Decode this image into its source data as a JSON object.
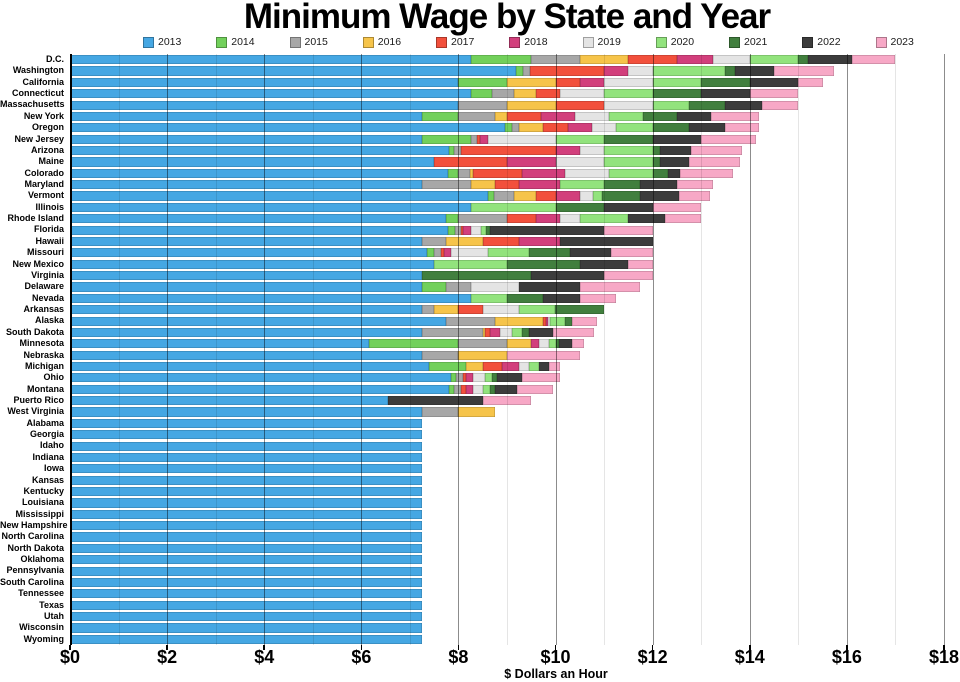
{
  "title": "Minimum Wage by State and Year",
  "chart_data": {
    "type": "bar",
    "orientation": "horizontal",
    "stacked": true,
    "title": "Minimum Wage by State and Year",
    "xlabel": "$ Dollars an Hour",
    "xlim": [
      0,
      18
    ],
    "x_ticks": [
      "$0",
      "$2",
      "$4",
      "$6",
      "$8",
      "$10",
      "$12",
      "$14",
      "$16",
      "$18"
    ],
    "x_tick_values": [
      0,
      2,
      4,
      6,
      8,
      10,
      12,
      14,
      16,
      18
    ],
    "grid": "vertical lines every $1, darker lines at labeled $2 steps",
    "legend_position": "top",
    "segment_meaning": "first segment = 2013 wage; each later segment = increase reached in that year; total bar length = 2023 wage",
    "years": [
      "2013",
      "2014",
      "2015",
      "2016",
      "2017",
      "2018",
      "2019",
      "2020",
      "2021",
      "2022",
      "2023"
    ],
    "year_colors": [
      "#45a7e3",
      "#72d05b",
      "#a7a7a7",
      "#f6c44a",
      "#f2503c",
      "#d23f7c",
      "#e4e4e4",
      "#92e37d",
      "#417f3e",
      "#3c3c3c",
      "#f7a8c6"
    ],
    "series_by_state": [
      {
        "state": "D.C.",
        "wage_by_year": [
          8.25,
          9.5,
          10.5,
          11.5,
          12.5,
          13.25,
          14.0,
          15.0,
          15.2,
          16.1,
          17.0
        ]
      },
      {
        "state": "Washington",
        "wage_by_year": [
          9.19,
          9.32,
          9.47,
          9.47,
          11.0,
          11.5,
          12.0,
          13.5,
          13.69,
          14.49,
          15.74
        ]
      },
      {
        "state": "California",
        "wage_by_year": [
          8.0,
          9.0,
          9.0,
          10.0,
          10.5,
          11.0,
          12.0,
          13.0,
          14.0,
          15.0,
          15.5
        ]
      },
      {
        "state": "Connecticut",
        "wage_by_year": [
          8.25,
          8.7,
          9.15,
          9.6,
          10.1,
          10.1,
          11.0,
          12.0,
          13.0,
          14.0,
          15.0
        ]
      },
      {
        "state": "Massachusetts",
        "wage_by_year": [
          8.0,
          8.0,
          9.0,
          10.0,
          11.0,
          11.0,
          12.0,
          12.75,
          13.5,
          14.25,
          15.0
        ]
      },
      {
        "state": "New York",
        "wage_by_year": [
          7.25,
          8.0,
          8.75,
          9.0,
          9.7,
          10.4,
          11.1,
          11.8,
          12.5,
          13.2,
          14.2
        ]
      },
      {
        "state": "Oregon",
        "wage_by_year": [
          8.95,
          9.1,
          9.25,
          9.75,
          10.25,
          10.75,
          11.25,
          12.0,
          12.75,
          13.5,
          14.2
        ]
      },
      {
        "state": "New Jersey",
        "wage_by_year": [
          7.25,
          8.25,
          8.38,
          8.38,
          8.44,
          8.6,
          10.0,
          11.0,
          12.0,
          13.0,
          14.13
        ]
      },
      {
        "state": "Arizona",
        "wage_by_year": [
          7.8,
          7.9,
          8.05,
          8.05,
          10.0,
          10.5,
          11.0,
          12.0,
          12.15,
          12.8,
          13.85
        ]
      },
      {
        "state": "Maine",
        "wage_by_year": [
          7.5,
          7.5,
          7.5,
          7.5,
          9.0,
          10.0,
          11.0,
          12.0,
          12.15,
          12.75,
          13.8
        ]
      },
      {
        "state": "Colorado",
        "wage_by_year": [
          7.78,
          8.0,
          8.23,
          8.31,
          9.3,
          10.2,
          11.1,
          12.0,
          12.32,
          12.56,
          13.65
        ]
      },
      {
        "state": "Maryland",
        "wage_by_year": [
          7.25,
          7.25,
          8.25,
          8.75,
          9.25,
          10.1,
          10.1,
          11.0,
          11.75,
          12.5,
          13.25
        ]
      },
      {
        "state": "Vermont",
        "wage_by_year": [
          8.6,
          8.73,
          9.15,
          9.6,
          10.0,
          10.5,
          10.78,
          10.96,
          11.75,
          12.55,
          13.18
        ]
      },
      {
        "state": "Illinois",
        "wage_by_year": [
          8.25,
          8.25,
          8.25,
          8.25,
          8.25,
          8.25,
          8.25,
          10.0,
          11.0,
          12.0,
          13.0
        ]
      },
      {
        "state": "Rhode Island",
        "wage_by_year": [
          7.75,
          8.0,
          9.0,
          9.0,
          9.6,
          10.1,
          10.5,
          11.5,
          11.5,
          12.25,
          13.0
        ]
      },
      {
        "state": "Florida",
        "wage_by_year": [
          7.79,
          7.93,
          8.05,
          8.05,
          8.1,
          8.25,
          8.46,
          8.56,
          8.65,
          11.0,
          12.0
        ]
      },
      {
        "state": "Hawaii",
        "wage_by_year": [
          7.25,
          7.25,
          7.75,
          8.5,
          9.25,
          10.1,
          10.1,
          10.1,
          10.1,
          12.0,
          12.0
        ]
      },
      {
        "state": "Missouri",
        "wage_by_year": [
          7.35,
          7.5,
          7.65,
          7.65,
          7.7,
          7.85,
          8.6,
          9.45,
          10.3,
          11.15,
          12.0
        ]
      },
      {
        "state": "New Mexico",
        "wage_by_year": [
          7.5,
          7.5,
          7.5,
          7.5,
          7.5,
          7.5,
          7.5,
          9.0,
          10.5,
          11.5,
          12.0
        ]
      },
      {
        "state": "Virginia",
        "wage_by_year": [
          7.25,
          7.25,
          7.25,
          7.25,
          7.25,
          7.25,
          7.25,
          7.25,
          9.5,
          11.0,
          12.0
        ]
      },
      {
        "state": "Delaware",
        "wage_by_year": [
          7.25,
          7.75,
          8.25,
          8.25,
          8.25,
          8.25,
          9.25,
          9.25,
          9.25,
          10.5,
          11.75
        ]
      },
      {
        "state": "Nevada",
        "wage_by_year": [
          8.25,
          8.25,
          8.25,
          8.25,
          8.25,
          8.25,
          8.25,
          9.0,
          9.75,
          10.5,
          11.25
        ]
      },
      {
        "state": "Arkansas",
        "wage_by_year": [
          7.25,
          7.25,
          7.5,
          8.0,
          8.5,
          8.5,
          9.25,
          10.0,
          11.0,
          11.0,
          11.0
        ]
      },
      {
        "state": "Alaska",
        "wage_by_year": [
          7.75,
          7.75,
          8.75,
          9.75,
          9.8,
          9.84,
          9.89,
          10.19,
          10.34,
          10.34,
          10.85
        ]
      },
      {
        "state": "South Dakota",
        "wage_by_year": [
          7.25,
          7.25,
          8.5,
          8.55,
          8.65,
          8.85,
          9.1,
          9.3,
          9.45,
          9.95,
          10.8
        ]
      },
      {
        "state": "Minnesota",
        "wage_by_year": [
          6.15,
          8.0,
          9.0,
          9.5,
          9.5,
          9.65,
          9.86,
          10.0,
          10.08,
          10.33,
          10.59
        ]
      },
      {
        "state": "Nebraska",
        "wage_by_year": [
          7.25,
          7.25,
          8.0,
          9.0,
          9.0,
          9.0,
          9.0,
          9.0,
          9.0,
          9.0,
          10.5
        ]
      },
      {
        "state": "Michigan",
        "wage_by_year": [
          7.4,
          8.15,
          8.15,
          8.5,
          8.9,
          9.25,
          9.45,
          9.65,
          9.65,
          9.87,
          10.1
        ]
      },
      {
        "state": "Ohio",
        "wage_by_year": [
          7.85,
          7.95,
          8.1,
          8.1,
          8.15,
          8.3,
          8.55,
          8.7,
          8.8,
          9.3,
          10.1
        ]
      },
      {
        "state": "Montana",
        "wage_by_year": [
          7.8,
          7.9,
          8.05,
          8.05,
          8.15,
          8.3,
          8.5,
          8.65,
          8.75,
          9.2,
          9.95
        ]
      },
      {
        "state": "Puerto Rico",
        "wage_by_year": [
          6.55,
          6.55,
          6.55,
          6.55,
          6.55,
          6.55,
          6.55,
          6.55,
          6.55,
          8.5,
          9.5
        ]
      },
      {
        "state": "West Virginia",
        "wage_by_year": [
          7.25,
          7.25,
          8.0,
          8.75,
          8.75,
          8.75,
          8.75,
          8.75,
          8.75,
          8.75,
          8.75
        ]
      },
      {
        "state": "Alabama",
        "wage_by_year": [
          7.25,
          7.25,
          7.25,
          7.25,
          7.25,
          7.25,
          7.25,
          7.25,
          7.25,
          7.25,
          7.25
        ]
      },
      {
        "state": "Georgia",
        "wage_by_year": [
          7.25,
          7.25,
          7.25,
          7.25,
          7.25,
          7.25,
          7.25,
          7.25,
          7.25,
          7.25,
          7.25
        ]
      },
      {
        "state": "Idaho",
        "wage_by_year": [
          7.25,
          7.25,
          7.25,
          7.25,
          7.25,
          7.25,
          7.25,
          7.25,
          7.25,
          7.25,
          7.25
        ]
      },
      {
        "state": "Indiana",
        "wage_by_year": [
          7.25,
          7.25,
          7.25,
          7.25,
          7.25,
          7.25,
          7.25,
          7.25,
          7.25,
          7.25,
          7.25
        ]
      },
      {
        "state": "Iowa",
        "wage_by_year": [
          7.25,
          7.25,
          7.25,
          7.25,
          7.25,
          7.25,
          7.25,
          7.25,
          7.25,
          7.25,
          7.25
        ]
      },
      {
        "state": "Kansas",
        "wage_by_year": [
          7.25,
          7.25,
          7.25,
          7.25,
          7.25,
          7.25,
          7.25,
          7.25,
          7.25,
          7.25,
          7.25
        ]
      },
      {
        "state": "Kentucky",
        "wage_by_year": [
          7.25,
          7.25,
          7.25,
          7.25,
          7.25,
          7.25,
          7.25,
          7.25,
          7.25,
          7.25,
          7.25
        ]
      },
      {
        "state": "Louisiana",
        "wage_by_year": [
          7.25,
          7.25,
          7.25,
          7.25,
          7.25,
          7.25,
          7.25,
          7.25,
          7.25,
          7.25,
          7.25
        ]
      },
      {
        "state": "Mississippi",
        "wage_by_year": [
          7.25,
          7.25,
          7.25,
          7.25,
          7.25,
          7.25,
          7.25,
          7.25,
          7.25,
          7.25,
          7.25
        ]
      },
      {
        "state": "New Hampshire",
        "wage_by_year": [
          7.25,
          7.25,
          7.25,
          7.25,
          7.25,
          7.25,
          7.25,
          7.25,
          7.25,
          7.25,
          7.25
        ]
      },
      {
        "state": "North Carolina",
        "wage_by_year": [
          7.25,
          7.25,
          7.25,
          7.25,
          7.25,
          7.25,
          7.25,
          7.25,
          7.25,
          7.25,
          7.25
        ]
      },
      {
        "state": "North Dakota",
        "wage_by_year": [
          7.25,
          7.25,
          7.25,
          7.25,
          7.25,
          7.25,
          7.25,
          7.25,
          7.25,
          7.25,
          7.25
        ]
      },
      {
        "state": "Oklahoma",
        "wage_by_year": [
          7.25,
          7.25,
          7.25,
          7.25,
          7.25,
          7.25,
          7.25,
          7.25,
          7.25,
          7.25,
          7.25
        ]
      },
      {
        "state": "Pennsylvania",
        "wage_by_year": [
          7.25,
          7.25,
          7.25,
          7.25,
          7.25,
          7.25,
          7.25,
          7.25,
          7.25,
          7.25,
          7.25
        ]
      },
      {
        "state": "South Carolina",
        "wage_by_year": [
          7.25,
          7.25,
          7.25,
          7.25,
          7.25,
          7.25,
          7.25,
          7.25,
          7.25,
          7.25,
          7.25
        ]
      },
      {
        "state": "Tennessee",
        "wage_by_year": [
          7.25,
          7.25,
          7.25,
          7.25,
          7.25,
          7.25,
          7.25,
          7.25,
          7.25,
          7.25,
          7.25
        ]
      },
      {
        "state": "Texas",
        "wage_by_year": [
          7.25,
          7.25,
          7.25,
          7.25,
          7.25,
          7.25,
          7.25,
          7.25,
          7.25,
          7.25,
          7.25
        ]
      },
      {
        "state": "Utah",
        "wage_by_year": [
          7.25,
          7.25,
          7.25,
          7.25,
          7.25,
          7.25,
          7.25,
          7.25,
          7.25,
          7.25,
          7.25
        ]
      },
      {
        "state": "Wisconsin",
        "wage_by_year": [
          7.25,
          7.25,
          7.25,
          7.25,
          7.25,
          7.25,
          7.25,
          7.25,
          7.25,
          7.25,
          7.25
        ]
      },
      {
        "state": "Wyoming",
        "wage_by_year": [
          7.25,
          7.25,
          7.25,
          7.25,
          7.25,
          7.25,
          7.25,
          7.25,
          7.25,
          7.25,
          7.25
        ]
      }
    ]
  }
}
